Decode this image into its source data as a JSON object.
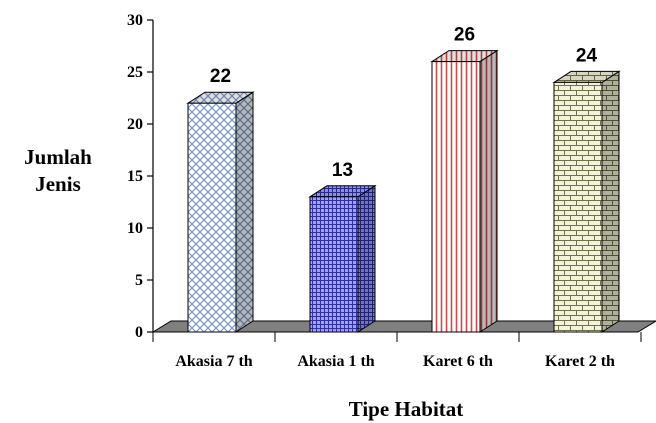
{
  "chart_data": {
    "type": "bar",
    "categories": [
      "Akasia 7 th",
      "Akasia 1 th",
      "Karet 6 th",
      "Karet 2 th"
    ],
    "values": [
      22,
      13,
      26,
      24
    ],
    "data_labels": [
      "22",
      "13",
      "26",
      "24"
    ],
    "xlabel": "Tipe Habitat",
    "ylabel_lines": [
      "Jumlah",
      "Jenis"
    ],
    "ylim": [
      0,
      30
    ],
    "yticks": [
      "0",
      "5",
      "10",
      "15",
      "20",
      "25",
      "30"
    ],
    "grid": false,
    "legend": "none",
    "style": "3d",
    "bar_patterns": [
      "diagonal-lattice",
      "grid-lattice",
      "vertical-stripes",
      "brick"
    ],
    "colors": {
      "bar_front": [
        "#ffffff",
        "#8080ff",
        "#ffffff",
        "#f3f3dc"
      ],
      "bar_line": [
        "#7a98c8",
        "#3030a0",
        "#d04a4a",
        "#70704a"
      ],
      "floor": "#808080"
    }
  }
}
